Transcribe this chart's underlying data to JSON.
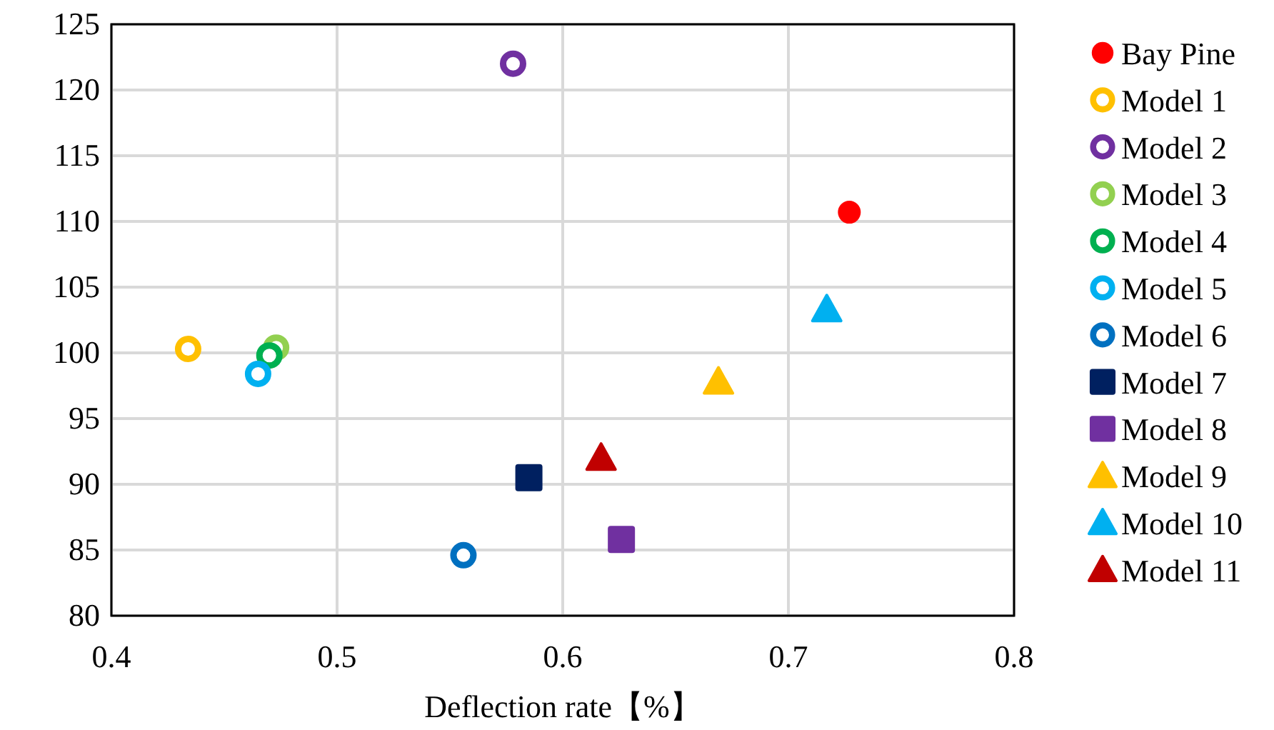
{
  "chart_data": {
    "type": "scatter",
    "xlabel": "Deflection rate【%】",
    "xlim": [
      0.4,
      0.8
    ],
    "xticks": [
      0.4,
      0.5,
      0.6,
      0.7,
      0.8
    ],
    "ylim": [
      80,
      125
    ],
    "yticks": [
      80,
      85,
      90,
      95,
      100,
      105,
      110,
      115,
      120,
      125
    ],
    "grid": true,
    "legend": "right",
    "series": [
      {
        "name": "Bay Pine",
        "color": "#ff0000",
        "x": [
          0.727
        ],
        "values": [
          110.7
        ]
      },
      {
        "name": "Model 1",
        "color": "#ffc000",
        "marker": "circle",
        "x": [
          0.434
        ],
        "values": [
          100.3
        ]
      },
      {
        "name": "Model 2",
        "color": "#7030a0",
        "marker": "circle",
        "x": [
          0.578
        ],
        "values": [
          122.0
        ]
      },
      {
        "name": "Model 3",
        "color": "#92d050",
        "marker": "circle",
        "x": [
          0.473
        ],
        "values": [
          100.4
        ]
      },
      {
        "name": "Model 4",
        "color": "#00b050",
        "marker": "circle",
        "x": [
          0.47
        ],
        "values": [
          99.8
        ]
      },
      {
        "name": "Model 5",
        "color": "#00b0f0",
        "marker": "circle",
        "x": [
          0.465
        ],
        "values": [
          98.4
        ]
      },
      {
        "name": "Model 6",
        "color": "#0070c0",
        "marker": "circle",
        "x": [
          0.556
        ],
        "values": [
          84.6
        ]
      },
      {
        "name": "Model 7",
        "color": "#002060",
        "marker": "square",
        "x": [
          0.585
        ],
        "values": [
          90.5
        ]
      },
      {
        "name": "Model 8",
        "color": "#7030a0",
        "marker": "square",
        "x": [
          0.626
        ],
        "values": [
          85.8
        ]
      },
      {
        "name": "Model 9",
        "color": "#ffc000",
        "marker": "triangle",
        "x": [
          0.669
        ],
        "values": [
          97.8
        ]
      },
      {
        "name": "Model 10",
        "color": "#00b0f0",
        "marker": "triangle",
        "x": [
          0.717
        ],
        "values": [
          103.3
        ]
      },
      {
        "name": "Model 11",
        "color": "#c00000",
        "marker": "triangle",
        "x": [
          0.617
        ],
        "values": [
          92.0
        ]
      }
    ]
  }
}
